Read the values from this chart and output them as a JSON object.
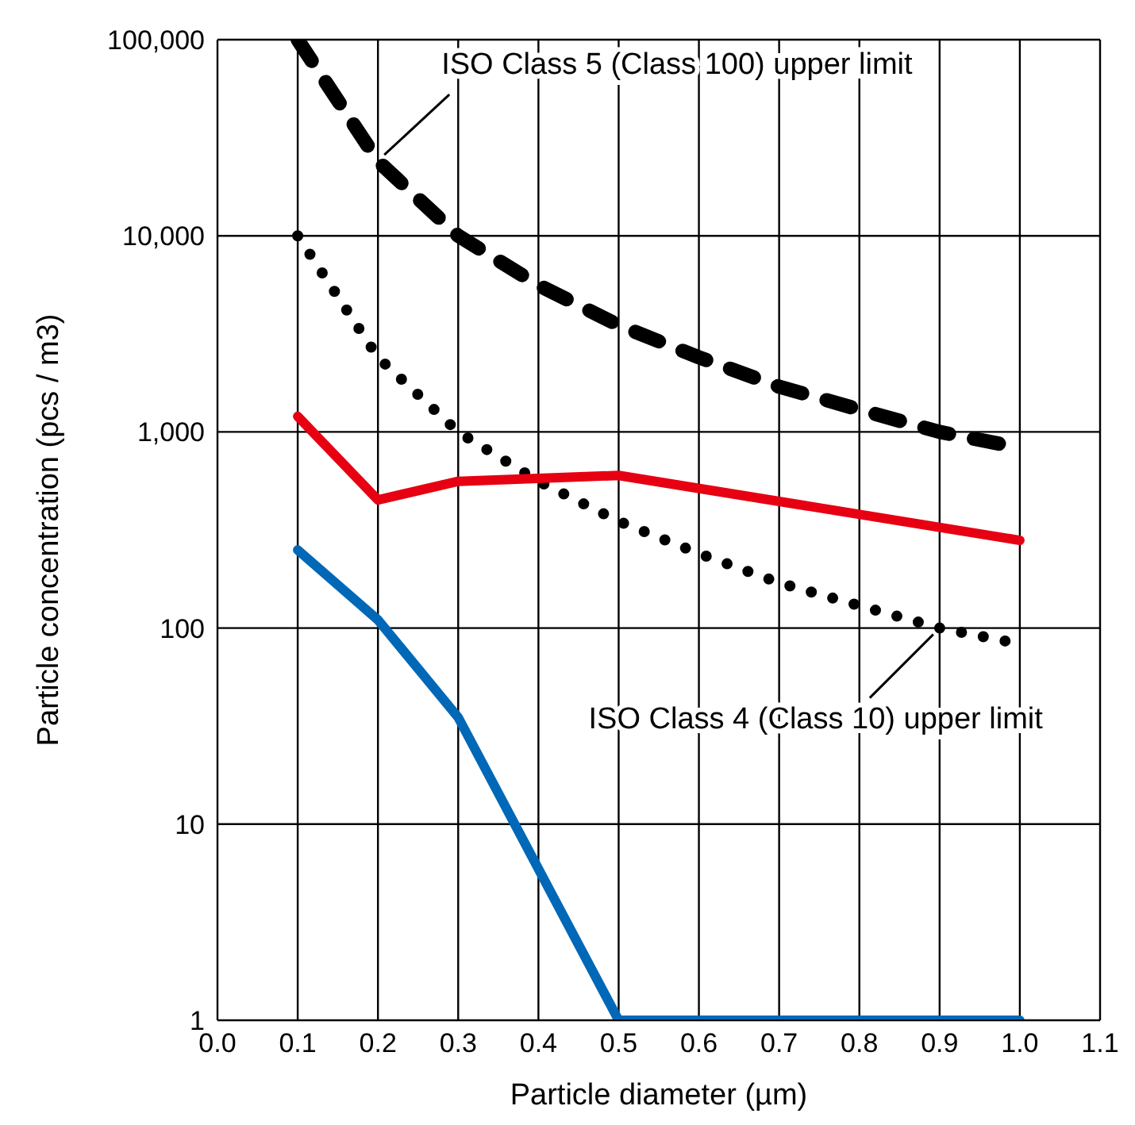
{
  "chart_data": {
    "type": "line",
    "xlabel": "Particle diameter (µm)",
    "ylabel": "Particle concentration (pcs / m3)",
    "log": "y",
    "grid": true,
    "marker": "none",
    "xlim": [
      0,
      1.1
    ],
    "xticks": [
      {
        "value": 0,
        "label": "0.0"
      },
      0.1,
      0.2,
      0.3,
      0.4,
      0.5,
      0.6,
      0.7,
      0.8,
      0.9,
      {
        "value": 1,
        "label": "1.0"
      },
      1.1
    ],
    "ylim": [
      1,
      100000
    ],
    "yticks": [
      1,
      10,
      100,
      {
        "value": 1000,
        "label": "1,000"
      },
      {
        "value": 10000,
        "label": "10,000"
      },
      {
        "value": 100000,
        "label": "100,000"
      }
    ],
    "series": [
      {
        "color": "#000000",
        "line_style": "dashed",
        "x": [
          0.1,
          0.2,
          0.3,
          0.4,
          0.5,
          0.6,
          0.7,
          0.8,
          0.9,
          1.0
        ],
        "values": [
          100000,
          24000,
          10000,
          5600,
          3500,
          2400,
          1700,
          1300,
          1000,
          830
        ]
      },
      {
        "color": "#000000",
        "line_style": "dotted",
        "x": [
          0.1,
          0.2,
          0.3,
          0.4,
          0.5,
          0.6,
          0.7,
          0.8,
          0.9,
          1.0
        ],
        "values": [
          10000,
          2400,
          1000,
          560,
          350,
          240,
          170,
          130,
          100,
          83
        ]
      },
      {
        "color": "#e60012",
        "line_style": "solid",
        "x": [
          0.1,
          0.2,
          0.3,
          0.5,
          1.0
        ],
        "values": [
          1200,
          450,
          560,
          600,
          280
        ]
      },
      {
        "color": "#0068b7",
        "line_style": "solid",
        "x": [
          0.1,
          0.2,
          0.3,
          0.5,
          1.0
        ],
        "values": [
          250,
          110,
          35,
          1,
          1
        ]
      }
    ],
    "annotations": [
      {
        "text": "ISO Class 5 (Class 100) upper limit",
        "x": 0.2,
        "y": 24000
      },
      {
        "text": "ISO Class 4 (Class 10) upper limit",
        "x": 0.9,
        "y": 100
      }
    ]
  }
}
